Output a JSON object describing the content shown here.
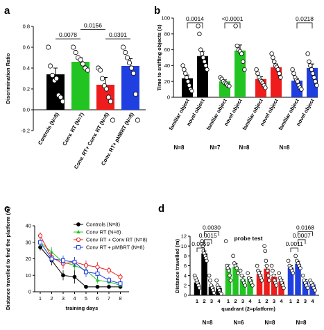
{
  "panel_labels": [
    "a",
    "b",
    "c",
    "d"
  ],
  "colors": {
    "black": "#000000",
    "green": "#22c422",
    "red": "#ee1c1c",
    "blue": "#1f3fe0"
  },
  "chart_data": [
    {
      "id": "a",
      "type": "bar",
      "ylabel": "Discrimination Ratio",
      "ylim": [
        -0.2,
        0.8
      ],
      "yticks": [
        -0.2,
        0.0,
        0.2,
        0.4,
        0.6,
        0.8
      ],
      "categories": [
        "Controls (N=8)",
        "Conv. RT (N=7)",
        "Conv. RT+ Conv. RT (N=8)",
        "Conv. RT+ pMBRT (N=8)"
      ],
      "values": [
        0.34,
        0.46,
        0.24,
        0.42
      ],
      "errors": [
        0.06,
        0.04,
        0.07,
        0.07
      ],
      "points": [
        [
          0.6,
          0.42,
          0.33,
          0.28,
          0.3,
          0.14,
          0.12,
          0.08
        ],
        [
          0.6,
          0.55,
          0.5,
          0.48,
          0.44,
          0.4,
          0.38
        ],
        [
          0.4,
          0.38,
          0.3,
          0.23,
          0.2,
          0.12,
          0.08,
          -0.1
        ],
        [
          0.6,
          0.55,
          0.5,
          0.45,
          0.4,
          0.35,
          0.15,
          -0.1
        ]
      ],
      "comparisons": [
        {
          "pair": [
            0,
            1
          ],
          "p": "0.0078"
        },
        {
          "pair": [
            1,
            2
          ],
          "p": "0.0156"
        },
        {
          "pair": [
            2,
            3
          ],
          "p": "0.0391"
        }
      ]
    },
    {
      "id": "b",
      "type": "bar",
      "ylabel": "Time to sniffing objects (s)",
      "ylim": [
        0,
        100
      ],
      "yticks": [
        0,
        20,
        40,
        60,
        80,
        100
      ],
      "categories": [
        "familiar object",
        "novel object",
        "familiar object",
        "novel object",
        "familiar object",
        "novel object",
        "familiar object",
        "novel object"
      ],
      "values": [
        24,
        52,
        20,
        59,
        23,
        38,
        21,
        37
      ],
      "errors": [
        4,
        6,
        2,
        7,
        3,
        4,
        3,
        5
      ],
      "points": [
        [
          40,
          35,
          30,
          25,
          20,
          15,
          10,
          8
        ],
        [
          90,
          80,
          60,
          55,
          50,
          45,
          40,
          35
        ],
        [
          25,
          23,
          20,
          18,
          17,
          15,
          14
        ],
        [
          90,
          65,
          60,
          58,
          55,
          45,
          35
        ],
        [
          35,
          30,
          25,
          22,
          20,
          18,
          15,
          12
        ],
        [
          55,
          50,
          45,
          40,
          38,
          35,
          30,
          25
        ],
        [
          35,
          30,
          25,
          22,
          20,
          15,
          12,
          10
        ],
        [
          55,
          45,
          40,
          35,
          30,
          25,
          20,
          15
        ]
      ],
      "comparisons": [
        {
          "pair": [
            0,
            1
          ],
          "p": "0.0014"
        },
        {
          "pair": [
            2,
            3
          ],
          "p": "<0.0001"
        },
        {
          "pair": [
            6,
            7
          ],
          "p": "0.0218"
        }
      ],
      "group_n": [
        "N=8",
        "N=7",
        "N=8",
        "N=8"
      ]
    },
    {
      "id": "c",
      "type": "line",
      "xlabel": "training days",
      "ylabel": "Distance travelled to find the platform (m)",
      "ylim": [
        0,
        40
      ],
      "yticks": [
        0,
        10,
        20,
        30,
        40
      ],
      "x": [
        1,
        2,
        3,
        4,
        5,
        6,
        7,
        8
      ],
      "legend_position": "top-right",
      "series": [
        {
          "name": "Controls (N=8)",
          "marker": "filled-circle",
          "values": [
            27,
            19,
            10,
            9,
            3,
            3,
            3,
            3
          ],
          "errors": [
            2,
            3,
            3,
            4,
            1,
            1,
            1,
            1
          ]
        },
        {
          "name": "Conv RT (N=8)",
          "marker": "filled-triangle",
          "values": [
            30,
            24,
            18,
            16,
            13,
            7,
            6,
            4
          ],
          "errors": [
            3,
            3,
            3,
            3,
            3,
            2,
            2,
            1
          ]
        },
        {
          "name": "Conv RT + Conv RT (N=8)",
          "marker": "open-circle",
          "values": [
            34,
            21,
            17,
            18,
            16,
            15,
            13,
            9
          ],
          "errors": [
            2,
            3,
            3,
            3,
            3,
            3,
            2,
            2
          ]
        },
        {
          "name": "Conv RT + pMBRT (N=8)",
          "marker": "open-square",
          "values": [
            30,
            20,
            19,
            18,
            12,
            11,
            7,
            5
          ],
          "errors": [
            2,
            3,
            3,
            3,
            3,
            3,
            2,
            2
          ]
        }
      ]
    },
    {
      "id": "d",
      "type": "bar",
      "title": "probe test",
      "xlabel": "quadrant (2=platform)",
      "ylabel": "Distance travelled (m)",
      "ylim": [
        0,
        12
      ],
      "yticks": [
        0,
        2,
        4,
        6,
        8,
        10,
        12
      ],
      "categories": [
        "1",
        "2",
        "3",
        "4"
      ],
      "groups": [
        {
          "n": "N=8",
          "values": [
            2.6,
            8.5,
            1.7,
            1.5
          ],
          "errors": [
            0.4,
            0.5,
            0.3,
            0.3
          ],
          "points": [
            [
              4,
              3.5,
              3,
              2.5,
              2,
              1.5
            ],
            [
              11,
              10,
              9,
              8.5,
              8,
              7.5,
              7
            ],
            [
              4,
              3,
              2,
              1.5,
              1,
              0.5
            ],
            [
              3,
              2,
              1.5,
              1,
              0.5,
              0.3
            ]
          ]
        },
        {
          "n": "N=6",
          "values": [
            5.5,
            5.8,
            3.3,
            3.2
          ],
          "errors": [
            0.7,
            0.6,
            0.5,
            0.4
          ],
          "points": [
            [
              11,
              6,
              5.5,
              5,
              4,
              3
            ],
            [
              8,
              6.5,
              6,
              5.5,
              4.5
            ],
            [
              5,
              4,
              3,
              2.5,
              2
            ],
            [
              4.5,
              3.5,
              3,
              2.5,
              2
            ]
          ]
        },
        {
          "n": "N=8",
          "values": [
            4.3,
            5.4,
            3.7,
            2.8
          ],
          "errors": [
            0.6,
            0.6,
            0.5,
            0.4
          ],
          "points": [
            [
              6,
              5,
              4.5,
              4,
              3.5,
              3
            ],
            [
              10,
              9,
              7,
              6,
              5,
              4,
              3
            ],
            [
              6,
              5,
              4,
              3,
              2.5,
              2
            ],
            [
              4.5,
              3.5,
              3,
              2.5,
              2,
              1.5
            ]
          ]
        },
        {
          "n": "N=8",
          "values": [
            5.6,
            6.4,
            2.8,
            2.2
          ],
          "errors": [
            0.4,
            0.5,
            0.4,
            0.3
          ],
          "points": [
            [
              7,
              6,
              5.5,
              5,
              4.5
            ],
            [
              8,
              7,
              6.5,
              6,
              5.5
            ],
            [
              4,
              3,
              2.5,
              2,
              1.5
            ],
            [
              3,
              2.5,
              2,
              1.5,
              1
            ]
          ]
        }
      ],
      "comparisons": [
        {
          "group": 0,
          "pair": [
            0,
            1
          ],
          "p": "0.0059"
        },
        {
          "group": 0,
          "pair": [
            1,
            2
          ],
          "p": "0.0015"
        },
        {
          "group": 0,
          "pair": [
            1,
            3
          ],
          "p": "0.0030"
        },
        {
          "group": 3,
          "pair": [
            0,
            1
          ],
          "p": "0.0011"
        },
        {
          "group": 3,
          "pair": [
            1,
            2
          ],
          "p": "0.0007"
        },
        {
          "group": 3,
          "pair": [
            1,
            3
          ],
          "p": "0.0168"
        }
      ]
    }
  ]
}
